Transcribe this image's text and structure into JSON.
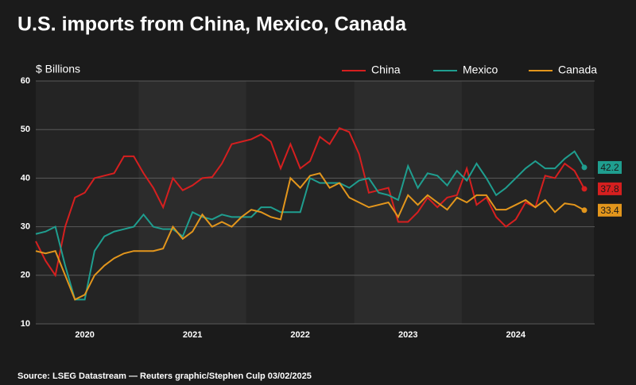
{
  "chart_data": {
    "type": "line",
    "title": "U.S. imports from China, Mexico, Canada",
    "y_label": "$ Billions",
    "source": "Source: LSEG Datastream — Reuters graphic/Stephen Culp 03/02/2025",
    "categories": [
      null,
      null,
      null,
      null,
      null,
      "2020",
      null,
      null,
      null,
      null,
      null,
      null,
      null,
      null,
      null,
      null,
      "2021",
      null,
      null,
      null,
      null,
      null,
      null,
      null,
      null,
      null,
      null,
      "2022",
      null,
      null,
      null,
      null,
      null,
      null,
      null,
      null,
      null,
      null,
      "2023",
      null,
      null,
      null,
      null,
      null,
      null,
      null,
      null,
      null,
      null,
      "2024",
      null,
      null,
      null,
      null,
      null,
      null,
      null
    ],
    "series": [
      {
        "name": "China",
        "color": "#d61f1f",
        "values": [
          27,
          23,
          20,
          30,
          36,
          37,
          40,
          40.5,
          41,
          44.5,
          44.5,
          41,
          38,
          34,
          40,
          37.5,
          38.5,
          40,
          40.2,
          43,
          47,
          47.5,
          48,
          49,
          47.5,
          42,
          47,
          42,
          43.5,
          48.5,
          47,
          50.3,
          49.5,
          45,
          37,
          37.5,
          38,
          31,
          31,
          33,
          36,
          34,
          36,
          36.5,
          42,
          34.5,
          36,
          32,
          30,
          31.5,
          35,
          34,
          40.5,
          40,
          43,
          41.5,
          37.8
        ]
      },
      {
        "name": "Mexico",
        "color": "#1f9e8f",
        "values": [
          28.5,
          29,
          30,
          22,
          15,
          15,
          25,
          28,
          29,
          29.5,
          30,
          32.5,
          30,
          29.5,
          29.5,
          28,
          33,
          32,
          31.5,
          32.5,
          32,
          32,
          32,
          34,
          34,
          33,
          33,
          33,
          40,
          39,
          39,
          39,
          38,
          39.5,
          40,
          37,
          36.5,
          35.5,
          42.5,
          38,
          41,
          40.5,
          38.5,
          41.5,
          39.5,
          43,
          40,
          36.5,
          38,
          40,
          42,
          43.5,
          42,
          42,
          44,
          45.5,
          42.2
        ]
      },
      {
        "name": "Canada",
        "color": "#e3961c",
        "values": [
          25,
          24.5,
          25,
          20,
          15,
          16,
          20,
          22,
          23.5,
          24.5,
          25,
          25,
          25,
          25.5,
          30,
          27.5,
          29,
          32.5,
          30,
          31,
          30,
          32,
          33.5,
          33,
          32,
          31.5,
          40,
          38,
          40.5,
          41,
          38,
          39,
          36,
          35,
          34,
          34.5,
          35,
          32,
          36.5,
          34.5,
          36.5,
          35,
          33.5,
          36,
          35,
          36.5,
          36.5,
          33.5,
          33.5,
          34.5,
          35.5,
          34,
          35.5,
          33,
          34.8,
          34.5,
          33.4
        ]
      }
    ],
    "ylim": [
      10,
      60
    ],
    "yticks": [
      10,
      20,
      30,
      40,
      50,
      60
    ],
    "grid": true,
    "legend": "top-right"
  }
}
